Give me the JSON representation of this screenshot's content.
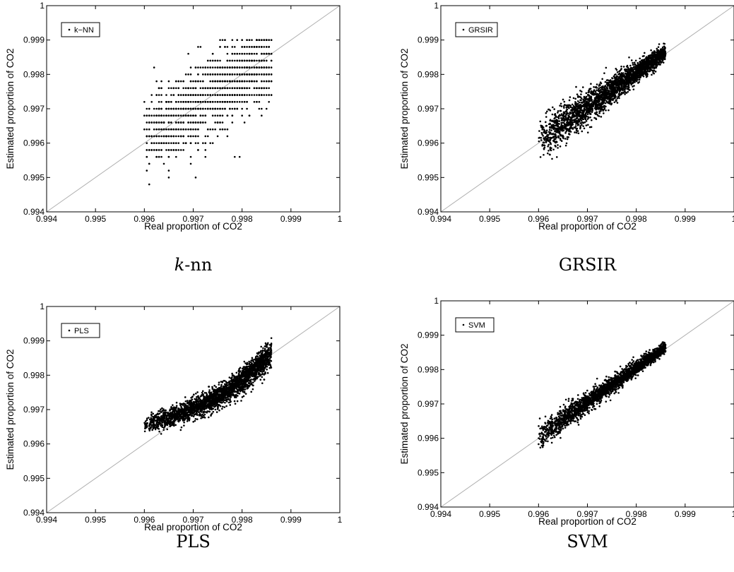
{
  "chart_data": [
    {
      "type": "scatter",
      "caption": "k-nn",
      "caption_italic_prefix": "k",
      "caption_rest": "-nn",
      "legend": "k−NN",
      "xlabel": "Real proportion of CO2",
      "ylabel": "Estimated proportion of CO2",
      "xlim": [
        0.994,
        1
      ],
      "ylim": [
        0.994,
        1
      ],
      "xticks": [
        "0.994",
        "0.995",
        "0.996",
        "0.997",
        "0.998",
        "0.999",
        "1"
      ],
      "yticks": [
        "0.994",
        "0.995",
        "0.996",
        "0.997",
        "0.998",
        "0.999",
        "1"
      ],
      "reference_line": "y = x",
      "legend_position": "top-left",
      "point_color": "#000000",
      "reference_color": "#b0b0b0",
      "model": {
        "kind": "discrete",
        "x_range": [
          0.996,
          0.9986
        ],
        "y_min": 0.9942,
        "y_max": 0.999,
        "y_step": 0.0002,
        "count": 1500
      }
    },
    {
      "type": "scatter",
      "caption": "GRSIR",
      "legend": "GRSIR",
      "xlabel": "Real proportion of CO2",
      "ylabel": "Estimated proportion of CO2",
      "xlim": [
        0.994,
        1
      ],
      "ylim": [
        0.994,
        1
      ],
      "xticks": [
        "0.994",
        "0.995",
        "0.996",
        "0.997",
        "0.998",
        "0.999",
        "1"
      ],
      "yticks": [
        "0.994",
        "0.995",
        "0.996",
        "0.997",
        "0.998",
        "0.999",
        "1"
      ],
      "reference_line": "y = x",
      "legend_position": "top-left",
      "point_color": "#000000",
      "reference_color": "#b0b0b0",
      "model": {
        "kind": "linear",
        "x_range": [
          0.996,
          0.9986
        ],
        "spread_low": 0.00032,
        "spread_high": 0.0001,
        "count": 2600
      }
    },
    {
      "type": "scatter",
      "caption": "PLS",
      "legend": "PLS",
      "xlabel": "Real proportion of CO2",
      "ylabel": "Estimated proportion of CO2",
      "xlim": [
        0.994,
        1
      ],
      "ylim": [
        0.994,
        1
      ],
      "xticks": [
        "0.994",
        "0.995",
        "0.996",
        "0.997",
        "0.998",
        "0.999",
        "1"
      ],
      "yticks": [
        "0.994",
        "0.995",
        "0.996",
        "0.997",
        "0.998",
        "0.999",
        "1"
      ],
      "reference_line": "y = x",
      "legend_position": "top-left",
      "point_color": "#000000",
      "reference_color": "#b0b0b0",
      "model": {
        "kind": "curve",
        "x_range": [
          0.996,
          0.9986
        ],
        "spread_low": 0.00012,
        "spread_high": 0.00012,
        "count": 2600
      }
    },
    {
      "type": "scatter",
      "caption": "SVM",
      "legend": "SVM",
      "xlabel": "Real proportion of CO2",
      "ylabel": "Estimated proportion of CO2",
      "xlim": [
        0.994,
        1
      ],
      "ylim": [
        0.994,
        1
      ],
      "xticks": [
        "0.994",
        "0.995",
        "0.996",
        "0.997",
        "0.998",
        "0.999",
        "1"
      ],
      "yticks": [
        "0.994",
        "0.995",
        "0.996",
        "0.997",
        "0.998",
        "0.999",
        "1"
      ],
      "reference_line": "y = x",
      "legend_position": "top-left",
      "point_color": "#000000",
      "reference_color": "#b0b0b0",
      "model": {
        "kind": "linear",
        "x_range": [
          0.996,
          0.9986
        ],
        "spread_low": 0.00018,
        "spread_high": 7e-05,
        "count": 2600
      }
    }
  ]
}
